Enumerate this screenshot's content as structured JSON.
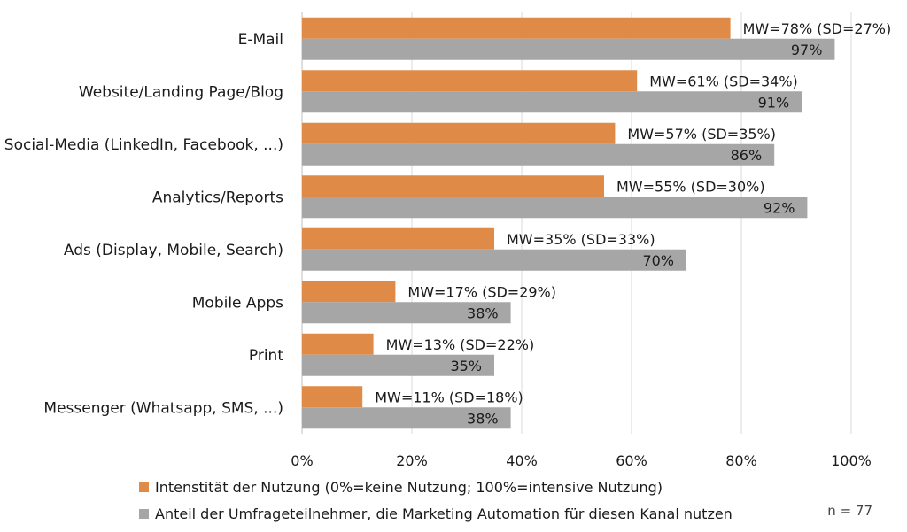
{
  "chart_data": {
    "type": "bar",
    "orientation": "horizontal",
    "categories": [
      "E-Mail",
      "Website/Landing Page/Blog",
      "Social-Media (LinkedIn, Facebook, ...)",
      "Analytics/Reports",
      "Ads (Display, Mobile, Search)",
      "Mobile Apps",
      "Print",
      "Messenger (Whatsapp, SMS, ...)"
    ],
    "series": [
      {
        "name": "Intenstität der Nutzung (0%=keine Nutzung; 100%=intensive Nutzung)",
        "color": "#e08a47",
        "values": [
          78,
          61,
          57,
          55,
          35,
          17,
          13,
          11
        ],
        "labels": [
          "MW=78% (SD=27%)",
          "MW=61% (SD=34%)",
          "MW=57% (SD=35%)",
          "MW=55% (SD=30%)",
          "MW=35% (SD=33%)",
          "MW=17% (SD=29%)",
          "MW=13% (SD=22%)",
          "MW=11% (SD=18%)"
        ]
      },
      {
        "name": "Anteil der Umfrageteilnehmer, die Marketing Automation für diesen Kanal nutzen",
        "color": "#a6a6a6",
        "values": [
          97,
          91,
          86,
          92,
          70,
          38,
          35,
          38
        ],
        "labels": [
          "97%",
          "91%",
          "86%",
          "92%",
          "70%",
          "38%",
          "35%",
          "38%"
        ]
      }
    ],
    "x_ticks": [
      "0%",
      "20%",
      "40%",
      "60%",
      "80%",
      "100%"
    ],
    "xlim": [
      0,
      100
    ],
    "grid": true,
    "legend_position": "bottom",
    "note": "n = 77"
  }
}
